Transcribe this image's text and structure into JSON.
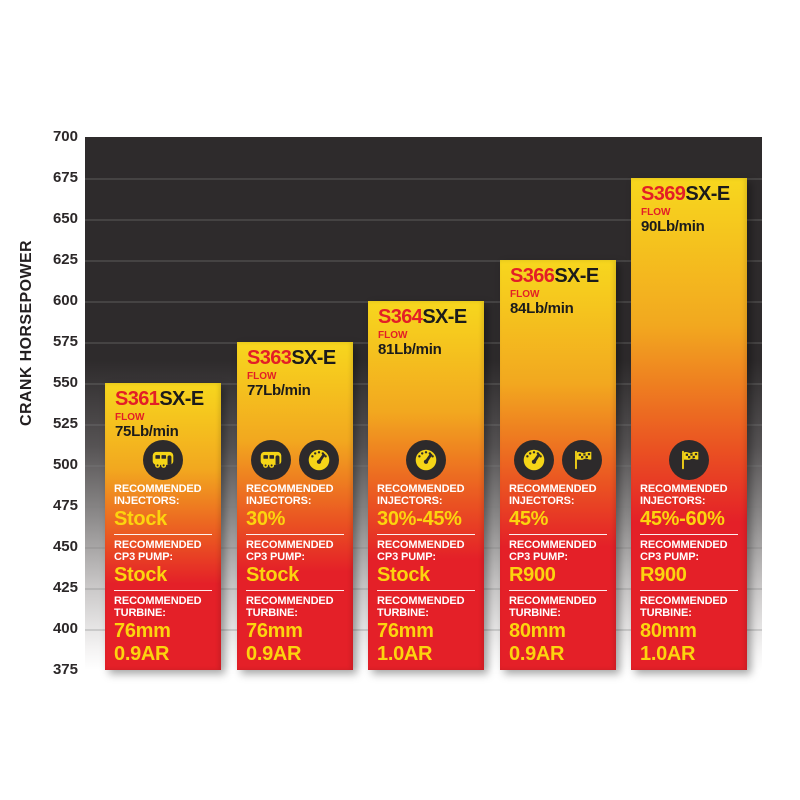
{
  "chart_data": {
    "type": "bar",
    "title": "",
    "ylabel": "CRANK HORSEPOWER",
    "ylim": [
      375,
      700
    ],
    "ytick_step": 25,
    "yticks": [
      700,
      675,
      650,
      625,
      600,
      575,
      550,
      525,
      500,
      475,
      450,
      425,
      400,
      375
    ],
    "grid": "horizontal",
    "legend_position": "none",
    "categories": [
      "S361SX-E",
      "S363SX-E",
      "S364SX-E",
      "S366SX-E",
      "S369SX-E"
    ],
    "values": [
      550,
      575,
      600,
      625,
      675
    ],
    "bars": [
      {
        "model_prefix": "S361",
        "model_suffix": "SX-E",
        "crank_horsepower": 550,
        "flow_label": "FLOW",
        "flow_value": "75Lb/min",
        "icons": [
          "rv-towing-icon"
        ],
        "injectors_label": "RECOMMENDED INJECTORS:",
        "injectors_value": "Stock",
        "cp3_label": "RECOMMENDED CP3 PUMP:",
        "cp3_value": "Stock",
        "turbine_label": "RECOMMENDED TURBINE:",
        "turbine_size": "76mm",
        "turbine_ar": "0.9AR"
      },
      {
        "model_prefix": "S363",
        "model_suffix": "SX-E",
        "crank_horsepower": 575,
        "flow_label": "FLOW",
        "flow_value": "77Lb/min",
        "icons": [
          "rv-towing-icon",
          "speedometer-gauge-icon"
        ],
        "injectors_label": "RECOMMENDED INJECTORS:",
        "injectors_value": "30%",
        "cp3_label": "RECOMMENDED CP3 PUMP:",
        "cp3_value": "Stock",
        "turbine_label": "RECOMMENDED TURBINE:",
        "turbine_size": "76mm",
        "turbine_ar": "0.9AR"
      },
      {
        "model_prefix": "S364",
        "model_suffix": "SX-E",
        "crank_horsepower": 600,
        "flow_label": "FLOW",
        "flow_value": "81Lb/min",
        "icons": [
          "speedometer-gauge-icon"
        ],
        "injectors_label": "RECOMMENDED INJECTORS:",
        "injectors_value": "30%-45%",
        "cp3_label": "RECOMMENDED CP3 PUMP:",
        "cp3_value": "Stock",
        "turbine_label": "RECOMMENDED TURBINE:",
        "turbine_size": "76mm",
        "turbine_ar": "1.0AR"
      },
      {
        "model_prefix": "S366",
        "model_suffix": "SX-E",
        "crank_horsepower": 625,
        "flow_label": "FLOW",
        "flow_value": "84Lb/min",
        "icons": [
          "speedometer-gauge-icon",
          "race-flag-icon"
        ],
        "injectors_label": "RECOMMENDED INJECTORS:",
        "injectors_value": "45%",
        "cp3_label": "RECOMMENDED CP3 PUMP:",
        "cp3_value": "R900",
        "turbine_label": "RECOMMENDED TURBINE:",
        "turbine_size": "80mm",
        "turbine_ar": "0.9AR"
      },
      {
        "model_prefix": "S369",
        "model_suffix": "SX-E",
        "crank_horsepower": 675,
        "flow_label": "FLOW",
        "flow_value": "90Lb/min",
        "icons": [
          "race-flag-icon"
        ],
        "injectors_label": "RECOMMENDED INJECTORS:",
        "injectors_value": "45%-60%",
        "cp3_label": "RECOMMENDED CP3 PUMP:",
        "cp3_value": "R900",
        "turbine_label": "RECOMMENDED TURBINE:",
        "turbine_size": "80mm",
        "turbine_ar": "1.0AR"
      }
    ],
    "colors": {
      "plot_background_dark": "#2e2b2c",
      "bar_gradient_top": "#f7d71e",
      "bar_gradient_bottom": "#e42028",
      "model_prefix_red": "#e31e26",
      "model_suffix_black": "#1b1b1b",
      "value_yellow": "#fcd40e",
      "label_white": "#ffffff",
      "icon_badge_dark": "#2d2a2b",
      "icon_glyph_yellow": "#f5d517"
    }
  }
}
